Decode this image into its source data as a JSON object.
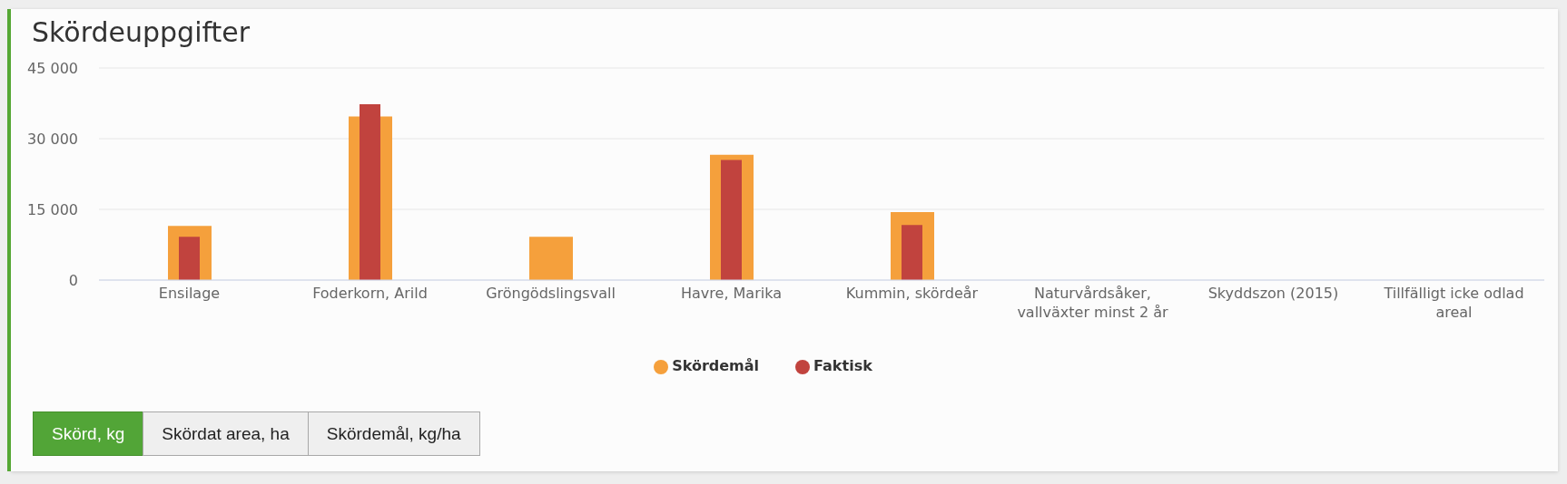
{
  "chart_data": {
    "type": "bar",
    "title": "Skördeuppgifter",
    "categories": [
      "Ensilage",
      "Foderkorn, Arild",
      "Gröngödslingsvall",
      "Havre, Marika",
      "Kummin, skördeår",
      "Naturvårdsåker, vallväxter minst 2 år",
      "Skyddszon (2015)",
      "Tillfälligt icke odlad areal"
    ],
    "series": [
      {
        "name": "Skördemål",
        "color": "#f5a03c",
        "values": [
          11500,
          34700,
          9200,
          26600,
          14400,
          null,
          null,
          null
        ]
      },
      {
        "name": "Faktisk",
        "color": "#c1433e",
        "values": [
          9200,
          37300,
          null,
          25500,
          11700,
          null,
          null,
          null
        ]
      }
    ],
    "ylim": [
      0,
      45000
    ],
    "yticks": [
      0,
      {
        "value": 15000,
        "label": "15 000"
      },
      {
        "value": 30000,
        "label": "30 000"
      },
      {
        "value": 45000,
        "label": "45 000"
      }
    ],
    "grid": "y",
    "legend": "bottom",
    "annotations": [
      "Skörd, kg",
      "Skördat area, ha",
      "Skördemål, kg/ha"
    ]
  }
}
